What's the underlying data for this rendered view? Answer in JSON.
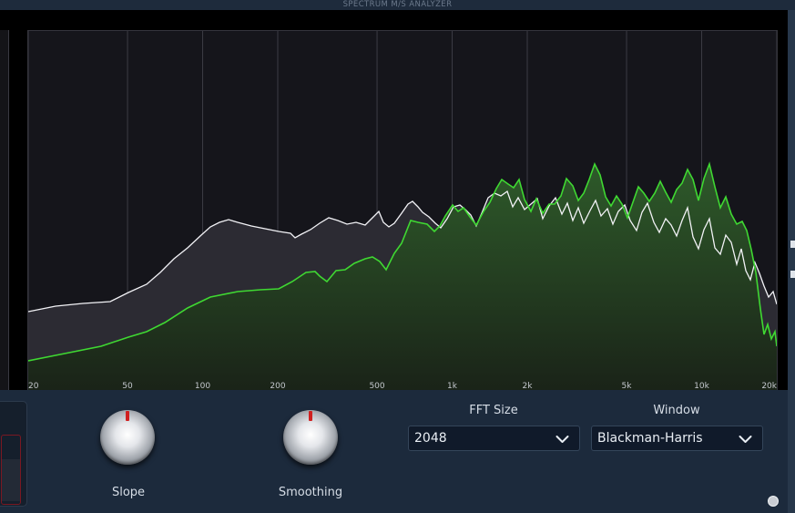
{
  "window": {
    "title": "SPECTRUM M/S ANALYZER"
  },
  "analyzer": {
    "x_axis": {
      "type": "log-frequency",
      "range_hz": [
        20,
        20000
      ],
      "ticks": [
        {
          "hz": 20,
          "label": "20"
        },
        {
          "hz": 50,
          "label": "50"
        },
        {
          "hz": 100,
          "label": "100"
        },
        {
          "hz": 200,
          "label": "200"
        },
        {
          "hz": 500,
          "label": "500"
        },
        {
          "hz": 1000,
          "label": "1k"
        },
        {
          "hz": 2000,
          "label": "2k"
        },
        {
          "hz": 5000,
          "label": "5k"
        },
        {
          "hz": 10000,
          "label": "10k"
        },
        {
          "hz": 20000,
          "label": "20k"
        }
      ]
    },
    "colors": {
      "background": "#15151b",
      "grid": "#3c3c44",
      "mid_line": "#f2f2f6",
      "mid_fill": "#2c2b33",
      "side_line": "#3fd832",
      "side_fill_top": "#2e5a2a",
      "side_fill_bottom": "#1a2318"
    },
    "traces": [
      {
        "key": "mid",
        "color": "#f2f2f6"
      },
      {
        "key": "side",
        "color": "#3fd832"
      }
    ]
  },
  "controls": {
    "slope": {
      "label": "Slope"
    },
    "smoothing": {
      "label": "Smoothing"
    },
    "fft_size": {
      "label": "FFT Size",
      "value": "2048"
    },
    "window": {
      "label": "Window",
      "value": "Blackman-Harris"
    },
    "bypass_icon": "circle-indicator"
  }
}
